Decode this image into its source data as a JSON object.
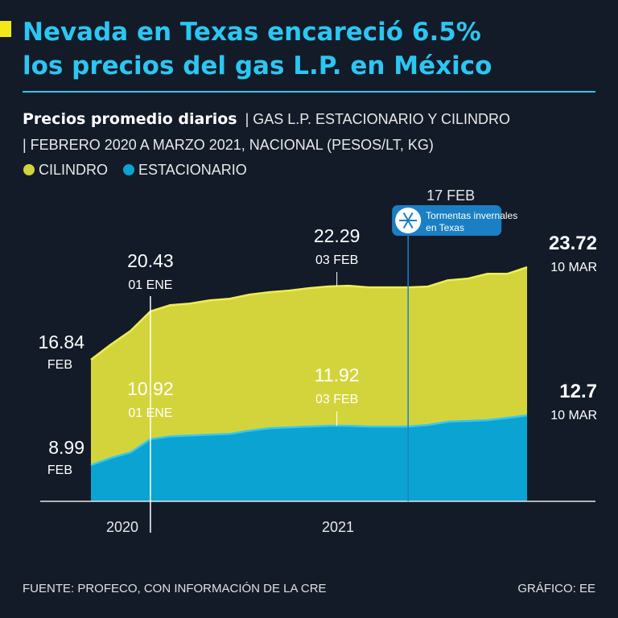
{
  "chart_data": {
    "type": "area",
    "title": [
      "Nevada en Texas encareció 6.5%",
      "los precios del gas L.P. en México"
    ],
    "subtitle_bold": "Precios promedio diarios",
    "subtitle": [
      "| GAS L.P. ESTACIONARIO Y CILINDRO",
      "| FEBRERO 2020 A MARZO 2021, NACIONAL (PESOS/LT, KG)"
    ],
    "categories": [
      "FEB",
      null,
      null,
      "01 ENE",
      null,
      null,
      null,
      null,
      null,
      null,
      null,
      null,
      "03 FEB",
      null,
      null,
      null,
      null,
      null,
      null,
      null,
      null,
      null,
      "10 MAR"
    ],
    "series": [
      {
        "name": "CILINDRO",
        "color": "#d3d43c",
        "line_color": "#eeee52",
        "values": [
          16.84,
          17.96,
          18.98,
          20.43,
          20.9,
          21.02,
          21.26,
          21.38,
          21.68,
          21.86,
          21.98,
          22.16,
          22.29,
          22.34,
          22.22,
          22.22,
          22.22,
          22.28,
          22.75,
          22.87,
          23.23,
          23.23,
          23.72
        ]
      },
      {
        "name": "ESTACIONARIO",
        "color": "#0ba3d2",
        "line_color": "#38c8f2",
        "values": [
          8.99,
          9.52,
          9.94,
          10.92,
          11.14,
          11.2,
          11.26,
          11.32,
          11.56,
          11.74,
          11.8,
          11.86,
          11.92,
          11.92,
          11.86,
          11.86,
          11.86,
          11.98,
          12.22,
          12.28,
          12.34,
          12.51,
          12.7
        ]
      }
    ],
    "ylim": [
      6.3,
      26
    ],
    "year_labels": [
      "2020",
      "2021"
    ],
    "event": {
      "date": "17 FEB",
      "label": [
        "Tormentas invernales",
        "en Texas"
      ]
    },
    "source": "FUENTE: PROFECO, CON INFORMACIÓN DE LA CRE",
    "credit": "GRÁFICO: EE"
  }
}
